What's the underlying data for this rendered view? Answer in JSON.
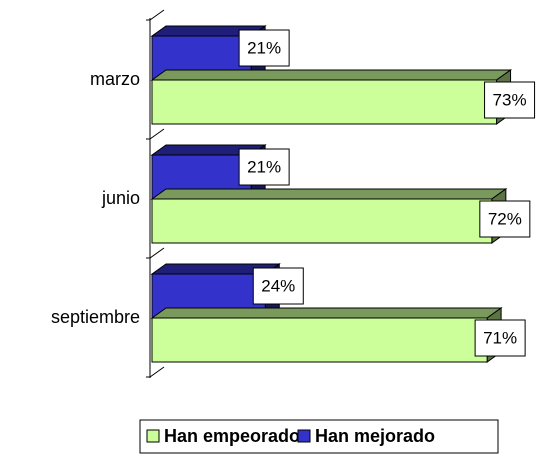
{
  "chart_data": {
    "type": "bar",
    "orientation": "horizontal",
    "three_d": true,
    "categories": [
      "marzo",
      "junio",
      "septiembre"
    ],
    "series": [
      {
        "name": "Han empeorado",
        "color": "#ccff99",
        "values": [
          73,
          72,
          71
        ],
        "value_labels": [
          "73%",
          "72%",
          "71%"
        ]
      },
      {
        "name": "Han mejorado",
        "color": "#3333cc",
        "values": [
          21,
          21,
          24
        ],
        "value_labels": [
          "21%",
          "21%",
          "24%"
        ]
      }
    ],
    "legend": "bottom"
  }
}
